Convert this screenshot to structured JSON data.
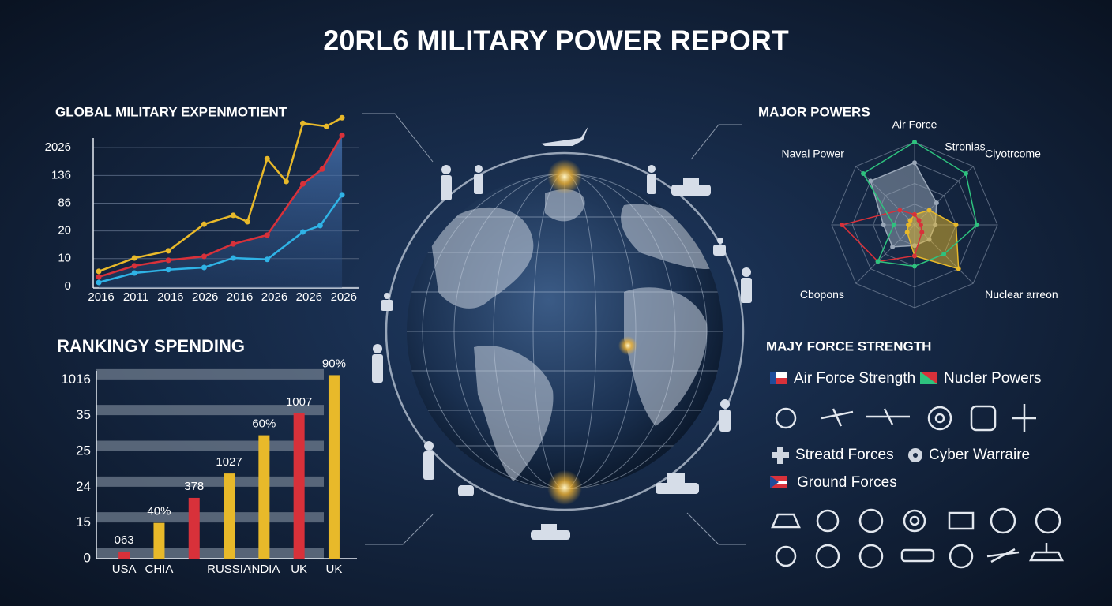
{
  "title": "20RL6 MILITARY POWER REPORT",
  "chart_data": [
    {
      "type": "line",
      "title": "GLOBAL MILITARY EXPENMOTIENT",
      "xlim": [
        -0.23,
        7.45
      ],
      "xticks": [
        {
          "value": 0,
          "label": "2016"
        },
        {
          "value": 1,
          "label": "2011"
        },
        {
          "value": 2,
          "label": "2016"
        },
        {
          "value": 3,
          "label": "2026"
        },
        {
          "value": 4,
          "label": "2016"
        },
        {
          "value": 5,
          "label": "2026"
        },
        {
          "value": 6,
          "label": "2026"
        },
        {
          "value": 7,
          "label": "2026"
        }
      ],
      "ylim": [
        -0.06,
        6.2
      ],
      "yticks": [
        {
          "value": 0,
          "label": "0"
        },
        {
          "value": 1,
          "label": "10"
        },
        {
          "value": 2,
          "label": "20"
        },
        {
          "value": 3,
          "label": "86"
        },
        {
          "value": 4,
          "label": "136"
        },
        {
          "value": 5,
          "label": "2026"
        }
      ],
      "grid": true,
      "series": [
        {
          "color": "#e8b92a",
          "x": [
            -0.07,
            0.96,
            1.94,
            2.97,
            3.81,
            4.22,
            4.79,
            5.34,
            5.82,
            6.5,
            6.95
          ],
          "values": [
            0.54,
            1.02,
            1.28,
            2.24,
            2.56,
            2.33,
            4.6,
            3.78,
            5.88,
            5.77,
            6.08
          ]
        },
        {
          "color": "#d8313a",
          "area": true,
          "x": [
            -0.07,
            0.96,
            1.94,
            2.97,
            3.81,
            4.79,
            5.82,
            6.38,
            6.95
          ],
          "values": [
            0.34,
            0.74,
            0.94,
            1.08,
            1.53,
            1.85,
            3.69,
            4.23,
            5.45
          ]
        },
        {
          "color": "#2fb3e6",
          "x": [
            -0.07,
            0.96,
            1.94,
            2.97,
            3.81,
            4.79,
            5.82,
            6.32,
            6.95
          ],
          "values": [
            0.14,
            0.48,
            0.6,
            0.68,
            1.02,
            0.97,
            1.96,
            2.19,
            3.3
          ]
        }
      ]
    },
    {
      "type": "bar",
      "title": "RANKINGY SPENDING",
      "categories": [
        "USA",
        "CHIA",
        null,
        "RUSSIA",
        "INDIA",
        "UK",
        "UK"
      ],
      "values": [
        0.2,
        1.0,
        1.7,
        2.38,
        3.45,
        4.06,
        5.13
      ],
      "colors": [
        "#d8313a",
        "#e8b92a",
        "#d8313a",
        "#e8b92a",
        "#e8b92a",
        "#d8313a",
        "#e8b92a"
      ],
      "annotations": [
        "063",
        "40%",
        "378",
        "1027",
        "60%",
        "1007",
        "90%"
      ],
      "ylim": [
        0,
        5.25
      ],
      "yticks": [
        {
          "value": 0,
          "label": "0"
        },
        {
          "value": 1,
          "label": "15"
        },
        {
          "value": 2,
          "label": "24"
        },
        {
          "value": 3,
          "label": "25"
        },
        {
          "value": 4,
          "label": "35"
        },
        {
          "value": 5,
          "label": "1016"
        }
      ],
      "grid": true
    },
    {
      "type": "radar",
      "title": "MAJOR POWERS",
      "annotation": "Stronias",
      "categories": [
        "Air Force",
        "Ciyotrcome",
        null,
        "Nuclear arreon",
        null,
        "Cbopons",
        null,
        "Naval Power"
      ],
      "rlim": [
        0,
        4
      ],
      "rticks": [
        1,
        2,
        3,
        4
      ],
      "series": [
        {
          "color": "#9aa7b8",
          "fill": true,
          "values": [
            3,
            1.5,
            1,
            1,
            1,
            1.5,
            1.5,
            3
          ]
        },
        {
          "color": "#e8b92a",
          "fill": true,
          "values": [
            0.5,
            1,
            2,
            3,
            1.5,
            0.5,
            0.3,
            0.3
          ]
        },
        {
          "color": "#d8313a",
          "values": [
            0.5,
            0.3,
            0.3,
            0.5,
            1.5,
            2.5,
            3.5,
            1
          ]
        },
        {
          "color": "#2ec27e",
          "values": [
            4,
            3.5,
            3,
            2,
            2,
            2.5,
            1,
            3.5
          ]
        }
      ]
    }
  ],
  "force_panel": {
    "title": "MAJY FORCE STRENGTH",
    "items": [
      "Air Force Strength",
      "Nucler Powers",
      "Streatd Forces",
      "Cyber Warraire",
      "Ground Forces"
    ]
  }
}
